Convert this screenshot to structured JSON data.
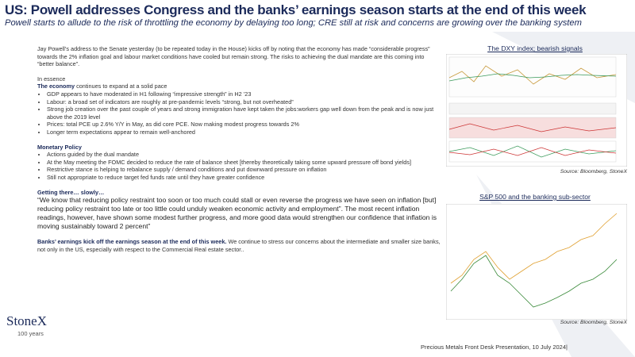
{
  "header": {
    "title": "US: Powell addresses Congress and the banks’ earnings season starts at the end of this week",
    "subtitle": "Powell starts to allude to the risk of throttling the economy by delaying too long; CRE still at risk and concerns are growing over the banking system"
  },
  "body": {
    "intro": "Jay Powell’s address to the Senate yesterday (to be repeated today in the House) kicks off by noting that the economy has made “considerable progress” towards the 2% inflation goal and labour market conditions have cooled but remain strong.  The risks to achieving the dual mandate are this coming into “better balance”.",
    "essence": {
      "heading": "In essence",
      "lead": "The economy",
      "text": " continues to expand at a solid pace",
      "bullets": [
        "GDP appears to have moderated in H1 following “impressive strength” in H2 ’23",
        "Labour: a broad set of indicators are roughly at pre-pandemic levels “strong, but not overheated”",
        "Strong job creation over the past couple of years and strong immigration have kept taken the jobs:workers gap well down from the peak and is now just above the 2019 level",
        "Prices: total PCE up 2.6% Y/Y in May, as did core PCE.  Now making modest progress towards 2%",
        "Longer term expectations appear to remain well-anchored"
      ]
    },
    "monetary": {
      "heading": "Monetary Policy",
      "bullets": [
        "Actions guided by the dual mandate",
        "At the May meeting the FOMC decided to reduce the rate of balance sheet  [thereby theoretically taking some upward pressure off bond yields]",
        "Restrictive stance is helping to rebalance supply / demand conditions and put downward pressure on inflation",
        "Still not appropriate  to reduce target fed funds rate until they have greater confidence"
      ]
    },
    "getting_there": {
      "heading": "Getting there… slowly…",
      "quote": "“We know that reducing policy restraint too soon or too much could stall or even reverse the progress we have seen on inflation [but] reducing policy restraint too late or too little could unduly weaken economic activity and employment”. The most recent inflation readings, however, have shown some modest further progress, and more good data would strengthen our confidence that inflation is moving sustainably toward 2 percent”"
    },
    "banks": {
      "lead": "Banks’ earnings kick off the earnings season at the end of this week.",
      "text": " We continue to stress our concerns about the intermediate and smaller size banks, not only in the US, especially with respect to the Commercial Real estate sector.."
    }
  },
  "charts": [
    {
      "title": "The DXY index; bearish signals",
      "source": "Source:  Bloomberg,  StoneX"
    },
    {
      "title": "S&P 500 and the banking sub-sector",
      "source": "Source:  Bloomberg,  StoneX"
    }
  ],
  "logo": {
    "name": "StoneX",
    "tagline": "100 years"
  },
  "footer": "Precious Metals Front Desk Presentation, 10 July 2024|"
}
